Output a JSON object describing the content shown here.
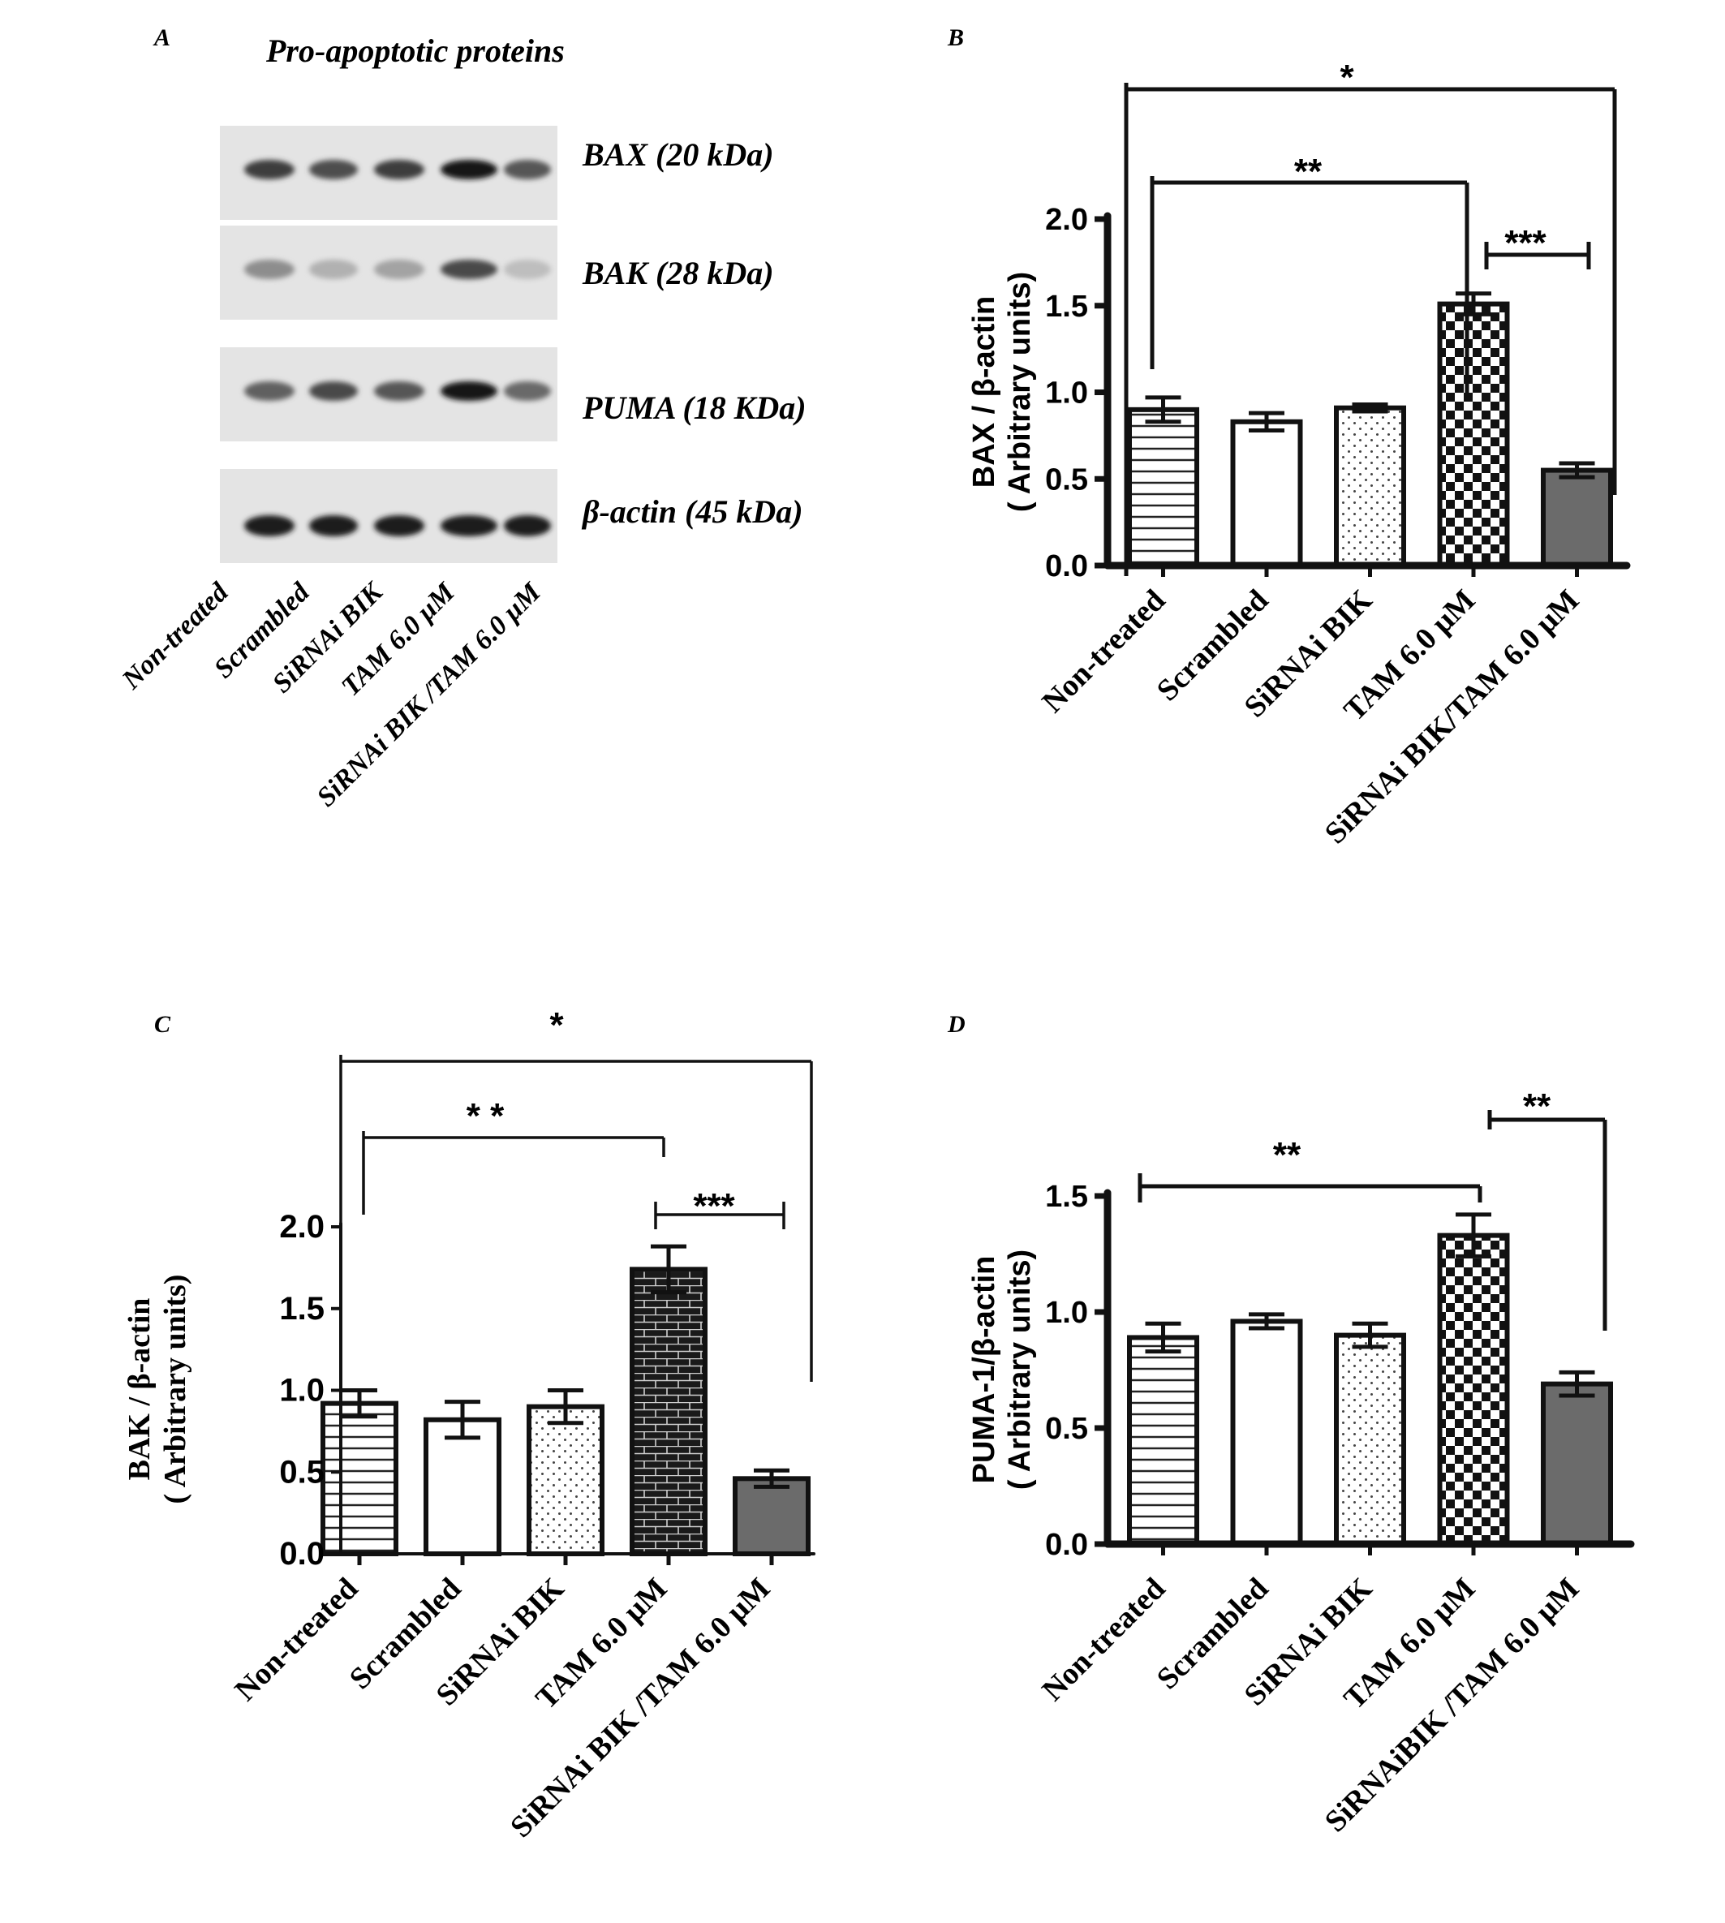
{
  "panel_letters": [
    "A",
    "B",
    "C",
    "D"
  ],
  "western_blot": {
    "title": "Pro-apoptotic proteins",
    "bands": [
      {
        "label": "BAX (20 kDa)",
        "intensities": [
          0.78,
          0.7,
          0.78,
          0.95,
          0.66
        ]
      },
      {
        "label": "BAK (28 kDa)",
        "intensities": [
          0.42,
          0.26,
          0.32,
          0.72,
          0.2
        ]
      },
      {
        "label": "PUMA (18 KDa)",
        "intensities": [
          0.62,
          0.72,
          0.66,
          0.95,
          0.58
        ]
      },
      {
        "label": "β-actin (45 kDa)",
        "intensities": [
          0.92,
          0.92,
          0.92,
          0.92,
          0.92
        ]
      }
    ],
    "lane_labels": [
      "Non-treated",
      "Scrambled",
      "SiRNAi BIK",
      "TAM 6.0 μM",
      "SiRNAi BIK /TAM 6.0 μM"
    ]
  },
  "chart_data": [
    {
      "panel": "B",
      "type": "bar",
      "categories": [
        "Non-treated",
        "Scrambled",
        "SiRNAi BIK",
        "TAM 6.0 μM",
        "SiRNAi BIK/TAM 6.0 μM"
      ],
      "values": [
        0.9,
        0.83,
        0.91,
        1.51,
        0.55
      ],
      "errors": [
        0.07,
        0.05,
        0.02,
        0.06,
        0.04
      ],
      "patterns": [
        "hlines",
        "none",
        "dots",
        "checker",
        "solid"
      ],
      "ylabel_line1": "BAX / β-actin",
      "ylabel_line2": "( Arbitrary units)",
      "ylim": [
        0,
        2.0
      ],
      "yticks": [
        "0.0",
        "0.5",
        "1.0",
        "1.5",
        "2.0"
      ],
      "significance": [
        {
          "from": 0,
          "to": 4,
          "label": "*"
        },
        {
          "from": 0,
          "to": 3,
          "label": "**"
        },
        {
          "from": 3,
          "to": 4,
          "label": "***"
        }
      ]
    },
    {
      "panel": "C",
      "type": "bar",
      "categories": [
        "Non-treated",
        "Scrambled",
        "SiRNAi BIK",
        "TAM 6.0 μM",
        "SiRNAi BIK /TAM 6.0 μM"
      ],
      "values": [
        0.92,
        0.82,
        0.9,
        1.74,
        0.46
      ],
      "errors": [
        0.08,
        0.11,
        0.1,
        0.14,
        0.05
      ],
      "patterns": [
        "hlines",
        "none",
        "dots",
        "brick",
        "solid"
      ],
      "ylabel_line1": "BAK / β-actin",
      "ylabel_line2": "( Arbitrary units)",
      "ylim": [
        0,
        2.0
      ],
      "yticks": [
        "0.0",
        "0.5",
        "1.0",
        "1.5",
        "2.0"
      ],
      "significance": [
        {
          "from": 0,
          "to": 4,
          "label": "*"
        },
        {
          "from": 0,
          "to": 3,
          "label": "*   *"
        },
        {
          "from": 3,
          "to": 4,
          "label": "***"
        }
      ]
    },
    {
      "panel": "D",
      "type": "bar",
      "categories": [
        "Non-treated",
        "Scrambled",
        "SiRNAi BIK",
        "TAM 6.0 μM",
        "SiRNAiBIK /TAM 6.0 μM"
      ],
      "values": [
        0.89,
        0.96,
        0.9,
        1.33,
        0.69
      ],
      "errors": [
        0.06,
        0.03,
        0.05,
        0.09,
        0.05
      ],
      "patterns": [
        "hlines",
        "none",
        "dots",
        "checker",
        "solid"
      ],
      "ylabel_line1": "PUMA-1/β-actin",
      "ylabel_line2": "( Arbitrary units)",
      "ylim": [
        0,
        1.5
      ],
      "yticks": [
        "0.0",
        "0.5",
        "1.0",
        "1.5"
      ],
      "significance": [
        {
          "from": 0,
          "to": 3,
          "label": "**"
        },
        {
          "from": 3,
          "to": 4,
          "label": "**"
        }
      ]
    }
  ]
}
